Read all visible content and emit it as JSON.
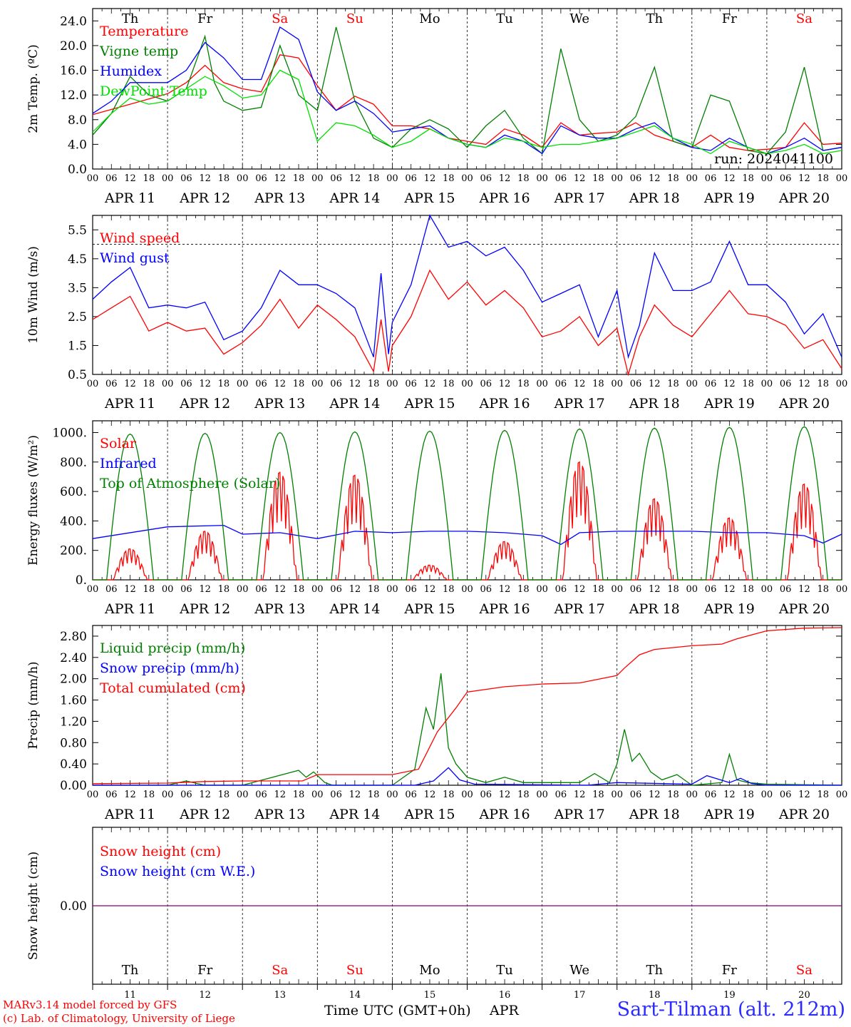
{
  "meta": {
    "run_label": "run: 2024041100",
    "model_credit": "MARv3.14 model forced by GFS",
    "lab_credit": "(c) Lab. of Climatology, University of Liege",
    "station": "Sart-Tilman (alt. 212m)",
    "x_title_time": "Time UTC (GMT+0h)",
    "x_title_month": "APR"
  },
  "days": {
    "names": [
      "Th",
      "Fr",
      "Sa",
      "Su",
      "Mo",
      "Tu",
      "We",
      "Th",
      "Fr",
      "Sa"
    ],
    "weekend_flags": [
      false,
      false,
      true,
      true,
      false,
      false,
      false,
      false,
      false,
      true
    ],
    "dates": [
      "APR 11",
      "APR 12",
      "APR 13",
      "APR 14",
      "APR 15",
      "APR 16",
      "APR 17",
      "APR 18",
      "APR 19",
      "APR 20"
    ],
    "numbers": [
      "11",
      "12",
      "13",
      "14",
      "15",
      "16",
      "17",
      "18",
      "19",
      "20"
    ],
    "hour_ticks": [
      "00",
      "06",
      "12",
      "18"
    ],
    "final_tick": "00"
  },
  "colors": {
    "red": "#ff0000",
    "green": "#007f00",
    "blue": "#0000ff",
    "lightgreen": "#00e000",
    "purple": "#7f007f",
    "weekend": "#ff0000"
  },
  "chart_data": [
    {
      "type": "line",
      "ylabel": "2m Temp. (ºC)",
      "ylim": [
        0,
        26
      ],
      "yticks": [
        "0.0",
        "4.0",
        "8.0",
        "12.0",
        "16.0",
        "20.0",
        "24.0"
      ],
      "xlim_days": [
        0,
        10
      ],
      "series": [
        {
          "name": "Temperature",
          "color": "red",
          "x": [
            0,
            0.5,
            1,
            1.25,
            1.5,
            1.75,
            2,
            2.25,
            2.5,
            2.75,
            3,
            3.25,
            3.5,
            3.75,
            4,
            4.25,
            4.5,
            4.75,
            5,
            5.25,
            5.5,
            5.75,
            6,
            6.25,
            6.5,
            6.75,
            7,
            7.25,
            7.5,
            7.75,
            8,
            8.25,
            8.5,
            8.75,
            9,
            9.25,
            9.5,
            9.75,
            10
          ],
          "y": [
            8.8,
            10.5,
            12.2,
            14.0,
            16.8,
            14.0,
            13.0,
            12.5,
            18.5,
            18.0,
            13.5,
            9.5,
            11.8,
            10.5,
            7.0,
            7.0,
            6.5,
            5.0,
            4.5,
            4.0,
            6.5,
            5.5,
            3.5,
            7.5,
            5.5,
            5.8,
            6.0,
            7.5,
            5.5,
            4.5,
            3.5,
            5.5,
            3.5,
            3.0,
            3.2,
            3.5,
            7.5,
            4.0,
            4.2
          ]
        },
        {
          "name": "Vigne temp",
          "color": "green",
          "x": [
            0,
            0.25,
            0.5,
            0.75,
            1,
            1.25,
            1.5,
            1.625,
            1.75,
            2,
            2.25,
            2.5,
            2.75,
            3,
            3.25,
            3.5,
            3.75,
            4,
            4.25,
            4.5,
            4.75,
            5,
            5.25,
            5.5,
            5.75,
            6,
            6.25,
            6.5,
            6.75,
            7,
            7.25,
            7.5,
            7.75,
            8,
            8.25,
            8.5,
            8.75,
            9,
            9.25,
            9.5,
            9.75,
            10
          ],
          "y": [
            5.5,
            9.0,
            15.0,
            12.0,
            11.0,
            13.0,
            21.5,
            14.0,
            11.0,
            9.5,
            10.0,
            20.0,
            12.0,
            9.5,
            23.0,
            11.0,
            5.0,
            3.5,
            6.5,
            8.0,
            6.5,
            3.5,
            7.0,
            9.5,
            5.0,
            2.5,
            19.5,
            8.0,
            4.5,
            5.5,
            8.5,
            16.5,
            4.5,
            3.5,
            12.0,
            11.0,
            3.0,
            2.5,
            6.0,
            16.5,
            3.0,
            3.5
          ]
        },
        {
          "name": "Humidex",
          "color": "blue",
          "x": [
            0,
            0.25,
            0.5,
            0.75,
            1,
            1.25,
            1.5,
            1.75,
            2,
            2.25,
            2.5,
            2.75,
            3,
            3.25,
            3.5,
            3.75,
            4,
            4.25,
            4.5,
            4.75,
            5,
            5.25,
            5.5,
            5.75,
            6,
            6.25,
            6.5,
            6.75,
            7,
            7.25,
            7.5,
            7.75,
            8,
            8.25,
            8.5,
            8.75,
            9,
            9.25,
            9.5,
            9.75,
            10
          ],
          "y": [
            9.0,
            11.0,
            14.0,
            14.0,
            14.0,
            16.0,
            20.5,
            18.0,
            14.5,
            14.5,
            23.0,
            21.0,
            12.5,
            9.5,
            11.0,
            9.0,
            6.0,
            6.5,
            7.0,
            5.0,
            4.0,
            3.5,
            5.5,
            4.5,
            2.5,
            7.0,
            5.5,
            5.0,
            5.0,
            6.5,
            7.5,
            5.0,
            3.5,
            3.0,
            5.0,
            3.5,
            2.5,
            3.5,
            5.0,
            3.0,
            3.5
          ]
        },
        {
          "name": "DewPoint Temp",
          "color": "lightgreen",
          "x": [
            0,
            0.25,
            0.5,
            0.75,
            1,
            1.25,
            1.5,
            1.75,
            2,
            2.25,
            2.5,
            2.75,
            3,
            3.25,
            3.5,
            3.75,
            4,
            4.25,
            4.5,
            4.75,
            5,
            5.25,
            5.5,
            5.75,
            6,
            6.25,
            6.5,
            6.75,
            7,
            7.25,
            7.5,
            7.75,
            8,
            8.25,
            8.5,
            8.75,
            9,
            9.25,
            9.5,
            9.75,
            10
          ],
          "y": [
            6.0,
            9.0,
            11.5,
            10.5,
            11.0,
            13.0,
            15.0,
            13.5,
            11.5,
            12.0,
            16.0,
            14.5,
            4.5,
            7.5,
            7.0,
            5.5,
            3.5,
            4.5,
            6.5,
            5.0,
            4.0,
            3.5,
            5.0,
            4.5,
            3.5,
            4.0,
            4.0,
            4.5,
            5.0,
            6.0,
            7.0,
            5.0,
            4.0,
            2.5,
            4.5,
            3.5,
            2.5,
            3.0,
            4.0,
            2.5,
            3.0
          ]
        }
      ]
    },
    {
      "type": "line",
      "ylabel": "10m Wind (m/s)",
      "ylim": [
        0.5,
        6.0
      ],
      "yticks": [
        "0.5",
        "1.5",
        "2.5",
        "3.5",
        "4.5",
        "5.5"
      ],
      "ref_line": 5.0,
      "xlim_days": [
        0,
        10
      ],
      "series": [
        {
          "name": "Wind speed",
          "color": "red",
          "x": [
            0,
            0.25,
            0.5,
            0.75,
            1,
            1.25,
            1.5,
            1.75,
            2,
            2.25,
            2.5,
            2.75,
            3,
            3.25,
            3.5,
            3.75,
            3.85,
            3.95,
            4,
            4.25,
            4.5,
            4.75,
            5,
            5.25,
            5.5,
            5.75,
            6,
            6.25,
            6.5,
            6.75,
            7,
            7.15,
            7.3,
            7.5,
            7.75,
            8,
            8.25,
            8.5,
            8.75,
            9,
            9.25,
            9.5,
            9.75,
            10
          ],
          "y": [
            2.4,
            2.8,
            3.2,
            2.0,
            2.3,
            2.0,
            2.1,
            1.2,
            1.6,
            2.2,
            3.1,
            2.1,
            2.9,
            2.4,
            1.8,
            0.6,
            2.4,
            0.6,
            1.5,
            2.5,
            4.1,
            3.1,
            3.7,
            2.9,
            3.4,
            2.8,
            1.8,
            2.0,
            2.5,
            1.5,
            2.1,
            0.5,
            1.8,
            2.9,
            2.2,
            1.8,
            2.6,
            3.4,
            2.6,
            2.5,
            2.2,
            1.4,
            1.7,
            0.7
          ]
        },
        {
          "name": "Wind gust",
          "color": "blue",
          "x": [
            0,
            0.25,
            0.5,
            0.75,
            1,
            1.25,
            1.5,
            1.75,
            2,
            2.25,
            2.5,
            2.75,
            3,
            3.25,
            3.5,
            3.75,
            3.85,
            3.95,
            4,
            4.25,
            4.5,
            4.75,
            5,
            5.25,
            5.5,
            5.75,
            6,
            6.25,
            6.5,
            6.75,
            7,
            7.15,
            7.3,
            7.5,
            7.75,
            8,
            8.25,
            8.5,
            8.75,
            9,
            9.25,
            9.5,
            9.75,
            10
          ],
          "y": [
            3.1,
            3.7,
            4.2,
            2.8,
            2.9,
            2.8,
            3.0,
            1.7,
            2.0,
            2.8,
            4.1,
            3.6,
            3.6,
            3.3,
            2.8,
            1.1,
            4.0,
            1.2,
            2.3,
            3.6,
            6.0,
            4.9,
            5.1,
            4.6,
            4.9,
            4.1,
            3.0,
            3.3,
            3.6,
            1.8,
            3.4,
            1.1,
            2.2,
            4.7,
            3.4,
            3.4,
            3.7,
            5.1,
            3.6,
            3.6,
            3.0,
            1.9,
            2.6,
            1.1
          ]
        }
      ]
    },
    {
      "type": "line",
      "ylabel": "Energy fluxes (W/m²)",
      "ylim": [
        0,
        1080
      ],
      "yticks": [
        "0.",
        "200.",
        "400.",
        "600.",
        "800.",
        "1000."
      ],
      "xlim_days": [
        0,
        10
      ],
      "series": [
        {
          "name": "Solar",
          "color": "red",
          "day_peaks": [
            210,
            330,
            730,
            710,
            100,
            260,
            800,
            550,
            420,
            650
          ]
        },
        {
          "name": "Infrared",
          "color": "blue",
          "x": [
            0,
            1,
            1.75,
            2,
            2.5,
            3,
            3.5,
            4,
            4.5,
            5,
            5.5,
            6,
            6.25,
            6.5,
            7,
            7.5,
            8,
            8.5,
            9,
            9.5,
            9.75,
            10
          ],
          "y": [
            280,
            360,
            370,
            310,
            320,
            280,
            330,
            320,
            330,
            330,
            320,
            300,
            240,
            320,
            330,
            330,
            330,
            320,
            320,
            300,
            250,
            310
          ]
        },
        {
          "name": "Top of Atmosphere (Solar)",
          "color": "green",
          "day_peaks": [
            990,
            995,
            1000,
            1005,
            1010,
            1015,
            1025,
            1030,
            1035,
            1040
          ]
        }
      ]
    },
    {
      "type": "line",
      "ylabel": "Precip (mm/h)",
      "ylim": [
        0,
        3.0
      ],
      "yticks": [
        "0.00",
        "0.40",
        "0.80",
        "1.20",
        "1.60",
        "2.00",
        "2.40",
        "2.80"
      ],
      "xlim_days": [
        0,
        10
      ],
      "series": [
        {
          "name": "Liquid precip (mm/h)",
          "color": "green",
          "x": [
            0,
            0.5,
            1.0,
            1.25,
            1.4,
            1.5,
            2.0,
            2.75,
            2.85,
            2.95,
            3.1,
            3.2,
            3.5,
            4.0,
            4.3,
            4.45,
            4.55,
            4.65,
            4.75,
            4.85,
            5.0,
            5.25,
            5.5,
            5.75,
            6.0,
            6.5,
            6.7,
            6.9,
            7.0,
            7.1,
            7.2,
            7.3,
            7.45,
            7.6,
            7.8,
            8.0,
            8.4,
            8.5,
            8.6,
            8.75,
            9.0,
            10
          ],
          "y": [
            0,
            0,
            0,
            0.08,
            0.03,
            0,
            0,
            0.28,
            0.15,
            0.25,
            0.05,
            0,
            0,
            0,
            0.3,
            1.45,
            1.05,
            2.1,
            0.7,
            0.4,
            0.15,
            0.05,
            0.15,
            0.05,
            0.05,
            0.05,
            0.22,
            0.05,
            0.4,
            1.05,
            0.45,
            0.6,
            0.25,
            0.1,
            0.2,
            0,
            0.05,
            0.58,
            0.1,
            0.05,
            0.02,
            0
          ]
        },
        {
          "name": "Snow precip (mm/h)",
          "color": "blue",
          "x": [
            0,
            4.3,
            4.55,
            4.75,
            4.9,
            5.1,
            6.6,
            7.0,
            8.0,
            8.2,
            8.5,
            8.65,
            8.8,
            9.0,
            10
          ],
          "y": [
            0,
            0,
            0.08,
            0.33,
            0.1,
            0.02,
            0,
            0.05,
            0.02,
            0.18,
            0.05,
            0.13,
            0.03,
            0,
            0
          ]
        },
        {
          "name": "Total cumulated (cm)",
          "color": "red",
          "x": [
            0,
            1.0,
            1.5,
            2.0,
            2.8,
            3.0,
            4.0,
            4.35,
            4.6,
            4.85,
            5.0,
            5.5,
            6.0,
            6.5,
            7.0,
            7.1,
            7.3,
            7.5,
            8.0,
            8.4,
            8.6,
            9.0,
            9.5,
            10.0
          ],
          "y": [
            0.03,
            0.04,
            0.07,
            0.08,
            0.08,
            0.2,
            0.2,
            0.3,
            1.0,
            1.45,
            1.75,
            1.85,
            1.9,
            1.92,
            2.06,
            2.2,
            2.45,
            2.55,
            2.62,
            2.65,
            2.75,
            2.9,
            2.95,
            2.96
          ]
        }
      ]
    },
    {
      "type": "line",
      "ylabel": "Snow height (cm)",
      "ylim": [
        -1,
        1
      ],
      "yticks": [
        "0.00"
      ],
      "xlim_days": [
        0,
        10
      ],
      "series": [
        {
          "name": "Snow height (cm)",
          "color": "red",
          "x": [
            0,
            10
          ],
          "y": [
            0,
            0
          ]
        },
        {
          "name": "Snow height (cm W.E.)",
          "color": "blue",
          "x": [
            0,
            10
          ],
          "y": [
            0,
            0
          ]
        }
      ]
    }
  ]
}
